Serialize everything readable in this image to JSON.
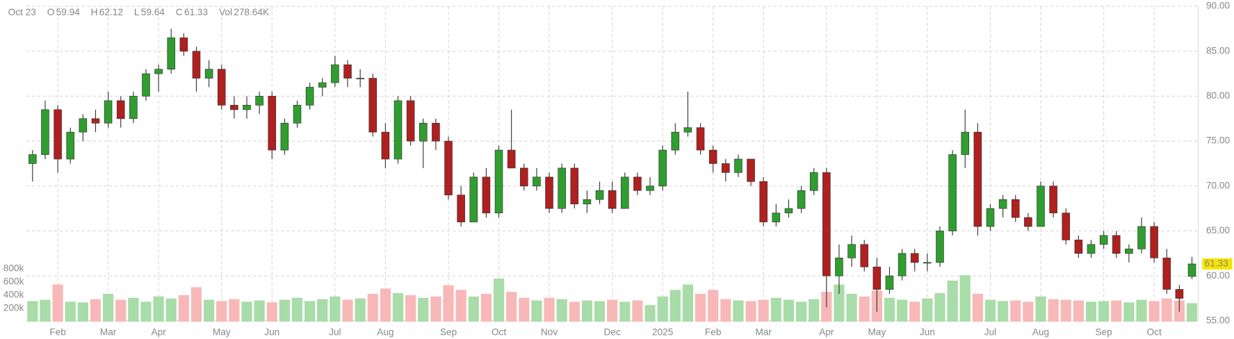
{
  "chart_data": {
    "type": "candlestick",
    "header": {
      "date": "Oct 23",
      "items": [
        {
          "label": "O",
          "value": 59.94
        },
        {
          "label": "H",
          "value": 62.12
        },
        {
          "label": "L",
          "value": 59.64
        },
        {
          "label": "C",
          "value": 61.33
        },
        {
          "label": "Vol",
          "value": {
            "value": 278640,
            "label": "278.64K"
          }
        }
      ]
    },
    "last_price": 61.33,
    "categories": [
      null,
      null,
      "Feb",
      null,
      null,
      null,
      "Mar",
      null,
      null,
      null,
      "Apr",
      null,
      null,
      null,
      null,
      "May",
      null,
      null,
      null,
      "Jun",
      null,
      null,
      null,
      null,
      "Jul",
      null,
      null,
      null,
      "Aug",
      null,
      null,
      null,
      null,
      "Sep",
      null,
      null,
      null,
      "Oct",
      null,
      null,
      null,
      "Nov",
      null,
      null,
      null,
      null,
      "Dec",
      null,
      null,
      null,
      "2025",
      null,
      null,
      null,
      "Feb",
      null,
      null,
      null,
      "Mar",
      null,
      null,
      null,
      null,
      "Apr",
      null,
      null,
      null,
      "May",
      null,
      null,
      null,
      "Jun",
      null,
      null,
      null,
      null,
      "Jul",
      null,
      null,
      null,
      "Aug",
      null,
      null,
      null,
      null,
      "Sep",
      null,
      null,
      null,
      "Oct",
      null,
      null,
      null
    ],
    "open": [
      72.5,
      73.5,
      78.5,
      73,
      76,
      77.5,
      77,
      79.5,
      77.5,
      80,
      82.5,
      83,
      86.5,
      85,
      82,
      83,
      79,
      78.5,
      79,
      80,
      74,
      77,
      79,
      81,
      81.5,
      83.5,
      82,
      82,
      76,
      73,
      79.5,
      75,
      77,
      75,
      69,
      66,
      71,
      67,
      74,
      72,
      70,
      71,
      67.5,
      72,
      68,
      68.5,
      69.5,
      67.5,
      71,
      69.5,
      70,
      74,
      76,
      76.5,
      74,
      72.5,
      71.5,
      73,
      70.5,
      66,
      67,
      67.5,
      69.5,
      71.5,
      60,
      62,
      63.5,
      61,
      58.5,
      60,
      62.5,
      61.5,
      61.5,
      65,
      73.5,
      76,
      65.5,
      67.5,
      68.5,
      66.5,
      65.5,
      70,
      67,
      64,
      62.5,
      63.5,
      64.5,
      62.5,
      63,
      65.5,
      62,
      58.5,
      59.94
    ],
    "high": [
      74,
      79.5,
      79,
      76.5,
      78,
      78.5,
      80.5,
      80,
      80.5,
      83,
      83.5,
      87.5,
      87,
      85.5,
      84,
      83.5,
      80,
      80,
      80.5,
      80.5,
      77.5,
      79.5,
      81.5,
      82,
      84.5,
      84,
      83,
      82.5,
      77,
      80,
      80,
      77.5,
      77.5,
      75.5,
      70,
      71.5,
      72,
      74.5,
      78.5,
      72.5,
      72,
      71.5,
      72.5,
      72.5,
      69.5,
      70.5,
      70.5,
      71.5,
      71.5,
      71,
      74.5,
      77,
      80.5,
      77,
      74.5,
      73,
      73.5,
      73,
      71,
      68,
      68.5,
      70,
      72,
      72,
      63.5,
      64.5,
      64,
      62,
      61,
      63,
      63,
      62.5,
      65.5,
      74,
      78.5,
      77,
      68,
      69,
      69,
      67,
      70.5,
      70.5,
      67.5,
      64.5,
      64,
      65,
      65,
      63.5,
      66.5,
      66,
      63,
      59,
      62.12
    ],
    "low": [
      70.5,
      73,
      71.5,
      72.5,
      75,
      76,
      76.5,
      76.5,
      77,
      79.5,
      80.5,
      82.5,
      84.5,
      80.5,
      81,
      78.5,
      77.5,
      77.5,
      78,
      73,
      73.5,
      76.5,
      78.5,
      80,
      81,
      81,
      81,
      75.5,
      72,
      72.5,
      74.5,
      72,
      74,
      68.5,
      65.5,
      66,
      66.5,
      66.5,
      72,
      69.5,
      69.5,
      67,
      67,
      67.5,
      67,
      68,
      67,
      67.5,
      69,
      69,
      69.5,
      73.5,
      75.5,
      73.5,
      71.5,
      70.5,
      71,
      70,
      65.5,
      65.5,
      66.5,
      67,
      69,
      56.5,
      58,
      61,
      60.5,
      56,
      58,
      59.5,
      60.5,
      60.5,
      61,
      64.5,
      72,
      64.5,
      65,
      66.5,
      66,
      65,
      65.5,
      66.5,
      63.5,
      62,
      62,
      63,
      62,
      61.5,
      62.5,
      61.5,
      58,
      56,
      59.64
    ],
    "close": [
      73.5,
      78.5,
      73,
      76,
      77.5,
      77,
      79.5,
      77.5,
      80,
      82.5,
      83,
      86.5,
      85,
      82,
      83,
      79,
      78.5,
      79,
      80,
      74,
      77,
      79,
      81,
      81.5,
      83.5,
      82,
      82,
      76,
      73,
      79.5,
      75,
      77,
      75,
      69,
      66,
      71,
      67,
      74,
      72,
      70,
      71,
      67.5,
      72,
      68,
      68.5,
      69.5,
      67.5,
      71,
      69.5,
      70,
      74,
      76,
      76.5,
      74,
      72.5,
      71.5,
      73,
      70.5,
      66,
      67,
      67.5,
      69.5,
      71.5,
      60,
      62,
      63.5,
      61,
      58.5,
      60,
      62.5,
      61.5,
      61.5,
      65,
      73.5,
      76,
      65.5,
      67.5,
      68.5,
      66.5,
      65.5,
      70,
      67,
      64,
      62.5,
      63.5,
      64.5,
      62.5,
      63,
      65.5,
      62,
      58.5,
      57.5,
      61.33
    ],
    "volume": [
      310000,
      330000,
      560000,
      300000,
      290000,
      340000,
      420000,
      330000,
      360000,
      300000,
      380000,
      350000,
      400000,
      520000,
      330000,
      310000,
      340000,
      300000,
      320000,
      290000,
      330000,
      360000,
      310000,
      340000,
      380000,
      330000,
      350000,
      420000,
      500000,
      430000,
      400000,
      360000,
      380000,
      550000,
      480000,
      380000,
      420000,
      650000,
      450000,
      360000,
      320000,
      360000,
      340000,
      300000,
      320000,
      310000,
      330000,
      300000,
      320000,
      250000,
      380000,
      480000,
      560000,
      420000,
      480000,
      340000,
      320000,
      310000,
      330000,
      360000,
      330000,
      300000,
      340000,
      450000,
      560000,
      420000,
      380000,
      470000,
      360000,
      330000,
      300000,
      350000,
      430000,
      620000,
      700000,
      420000,
      330000,
      310000,
      320000,
      300000,
      380000,
      340000,
      330000,
      320000,
      300000,
      310000,
      320000,
      290000,
      330000,
      310000,
      350000,
      320000,
      278640
    ],
    "ylim": [
      55,
      90
    ],
    "yticks": [
      {
        "value": 55,
        "label": "55.00"
      },
      {
        "value": 60,
        "label": "60.00"
      },
      {
        "value": 65,
        "label": "65.00"
      },
      {
        "value": 70,
        "label": "70.00"
      },
      {
        "value": 75,
        "label": "75.00"
      },
      {
        "value": 80,
        "label": "80.00"
      },
      {
        "value": 85,
        "label": "85.00"
      },
      {
        "value": 90,
        "label": "90.00"
      }
    ],
    "y2lim": [
      0,
      800000
    ],
    "y2ticks": [
      {
        "value": 200000,
        "label": "200k"
      },
      {
        "value": 400000,
        "label": "400k"
      },
      {
        "value": 600000,
        "label": "600k"
      },
      {
        "value": 800000,
        "label": "800k"
      }
    ],
    "grid": true,
    "up_color": "#2f9e2f",
    "down_color": "#b0201f",
    "volume_up_color": "#a8dca8",
    "volume_down_color": "#f8b8b8"
  }
}
